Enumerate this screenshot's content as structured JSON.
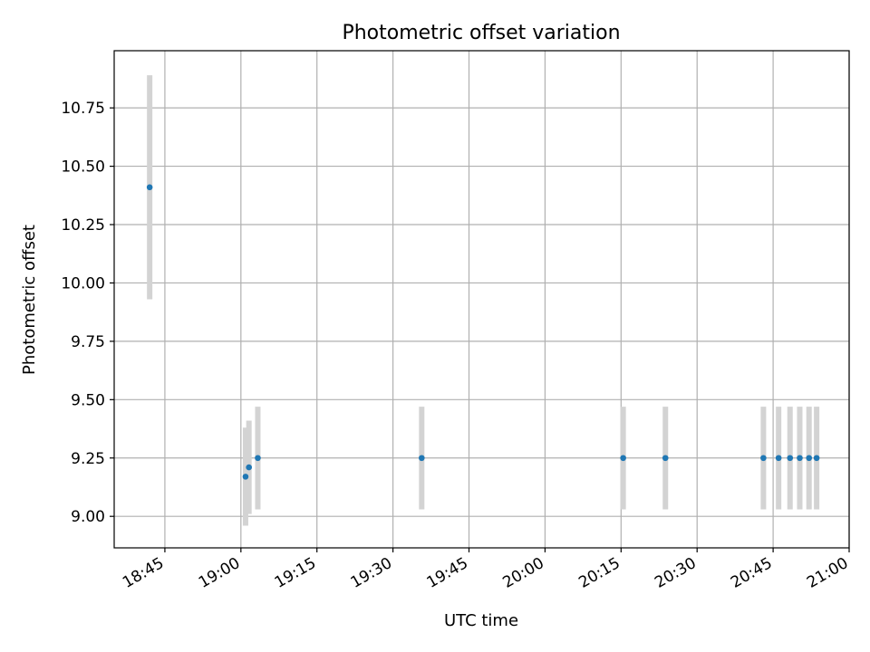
{
  "chart_data": {
    "type": "scatter",
    "title": "Photometric offset variation",
    "xlabel": "UTC time",
    "ylabel": "Photometric offset",
    "xlim": [
      "18:35",
      "21:00"
    ],
    "ylim": [
      8.865,
      10.995
    ],
    "x_ticks": [
      "18:45",
      "19:00",
      "19:15",
      "19:30",
      "19:45",
      "20:00",
      "20:15",
      "20:30",
      "20:45",
      "21:00"
    ],
    "y_ticks": [
      "9.00",
      "9.25",
      "9.50",
      "9.75",
      "10.00",
      "10.25",
      "10.50",
      "10.75"
    ],
    "grid": true,
    "marker_color": "#1f77b4",
    "errorbar_color": "#d3d3d3",
    "points": [
      {
        "x": "18:42",
        "y": 10.41,
        "err": 0.48
      },
      {
        "x": "19:00:55",
        "y": 9.17,
        "err": 0.21
      },
      {
        "x": "19:01:35",
        "y": 9.21,
        "err": 0.2
      },
      {
        "x": "19:03:20",
        "y": 9.25,
        "err": 0.22
      },
      {
        "x": "19:35:40",
        "y": 9.25,
        "err": 0.22
      },
      {
        "x": "20:15:25",
        "y": 9.25,
        "err": 0.22
      },
      {
        "x": "20:23:45",
        "y": 9.25,
        "err": 0.22
      },
      {
        "x": "20:43:05",
        "y": 9.25,
        "err": 0.22
      },
      {
        "x": "20:46:05",
        "y": 9.25,
        "err": 0.22
      },
      {
        "x": "20:48:20",
        "y": 9.25,
        "err": 0.22
      },
      {
        "x": "20:50:15",
        "y": 9.25,
        "err": 0.22
      },
      {
        "x": "20:52:05",
        "y": 9.25,
        "err": 0.22
      },
      {
        "x": "20:53:35",
        "y": 9.25,
        "err": 0.22
      }
    ]
  }
}
